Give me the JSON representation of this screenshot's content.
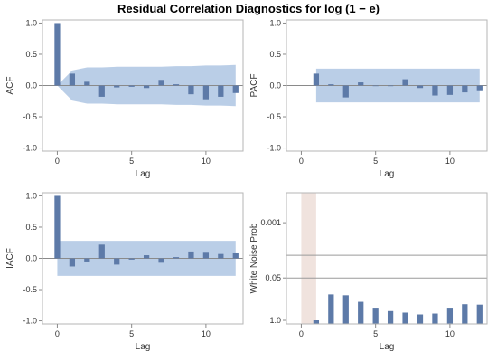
{
  "title": "Residual Correlation Diagnostics for log (1 − e)",
  "colors": {
    "bar": "#5d7aa8",
    "band": "#aec6e3",
    "highlight": "#ecdcd6",
    "frame": "#b5b5b5"
  },
  "chart_data": [
    {
      "type": "bar",
      "id": "acf",
      "ylabel": "ACF",
      "xlabel": "Lag",
      "xlim": [
        -1,
        12.5
      ],
      "ylim": [
        -1.05,
        1.05
      ],
      "xticks": [
        0,
        5,
        10
      ],
      "yticks": [
        1.0,
        0.5,
        0.0,
        -0.5,
        -1.0
      ],
      "ytick_labels": [
        "1.0",
        "0.5",
        "0.0",
        "-0.5",
        "-1.0"
      ],
      "lags": [
        0,
        1,
        2,
        3,
        4,
        5,
        6,
        7,
        8,
        9,
        10,
        11,
        12
      ],
      "values": [
        1.0,
        0.19,
        0.06,
        -0.18,
        -0.03,
        -0.02,
        -0.04,
        0.09,
        0.02,
        -0.14,
        -0.22,
        -0.18,
        -0.12
      ],
      "band_upper": [
        0,
        0.24,
        0.29,
        0.29,
        0.3,
        0.3,
        0.3,
        0.3,
        0.31,
        0.31,
        0.32,
        0.32,
        0.33
      ],
      "band_lower": [
        0,
        -0.24,
        -0.29,
        -0.29,
        -0.3,
        -0.3,
        -0.3,
        -0.3,
        -0.31,
        -0.31,
        -0.32,
        -0.32,
        -0.33
      ]
    },
    {
      "type": "bar",
      "id": "pacf",
      "ylabel": "PACF",
      "xlabel": "Lag",
      "xlim": [
        -1,
        12.5
      ],
      "ylim": [
        -1.05,
        1.05
      ],
      "xticks": [
        0,
        5,
        10
      ],
      "yticks": [
        1.0,
        0.5,
        0.0,
        -0.5,
        -1.0
      ],
      "ytick_labels": [
        "1.0",
        "0.5",
        "0.0",
        "-0.5",
        "-1.0"
      ],
      "lags": [
        1,
        2,
        3,
        4,
        5,
        6,
        7,
        8,
        9,
        10,
        11,
        12
      ],
      "values": [
        0.19,
        0.02,
        -0.19,
        0.05,
        -0.01,
        -0.01,
        0.1,
        -0.04,
        -0.16,
        -0.15,
        -0.11,
        -0.09
      ],
      "band_upper": 0.27,
      "band_lower": -0.27
    },
    {
      "type": "bar",
      "id": "iacf",
      "ylabel": "IACF",
      "xlabel": "Lag",
      "xlim": [
        -1,
        12.5
      ],
      "ylim": [
        -1.05,
        1.05
      ],
      "xticks": [
        0,
        5,
        10
      ],
      "yticks": [
        1.0,
        0.5,
        0.0,
        -0.5,
        -1.0
      ],
      "ytick_labels": [
        "1.0",
        "0.5",
        "0.0",
        "-0.5",
        "-1.0"
      ],
      "lags": [
        0,
        1,
        2,
        3,
        4,
        5,
        6,
        7,
        8,
        9,
        10,
        11,
        12
      ],
      "values": [
        1.0,
        -0.13,
        -0.05,
        0.22,
        -0.1,
        -0.02,
        0.05,
        -0.07,
        0.02,
        0.11,
        0.09,
        0.07,
        0.08
      ],
      "band_upper": 0.28,
      "band_lower": -0.28
    },
    {
      "type": "bar",
      "id": "white-noise",
      "ylabel": "White Noise Prob",
      "xlabel": "Lag",
      "xlim": [
        -1,
        12.5
      ],
      "xticks": [
        0,
        5,
        10
      ],
      "yscale": "log (inverted probability)",
      "ytick_values": [
        0.001,
        0.05,
        1.0
      ],
      "ytick_labels": [
        "0.001",
        "0.05",
        "1.0"
      ],
      "reference_lines": [
        0.01,
        0.05
      ],
      "highlight_lag_range": [
        0,
        1
      ],
      "lags": [
        1,
        2,
        3,
        4,
        5,
        6,
        7,
        8,
        9,
        10,
        11,
        12
      ],
      "values": [
        1.0,
        0.16,
        0.17,
        0.27,
        0.41,
        0.52,
        0.58,
        0.66,
        0.62,
        0.41,
        0.32,
        0.33
      ]
    }
  ]
}
